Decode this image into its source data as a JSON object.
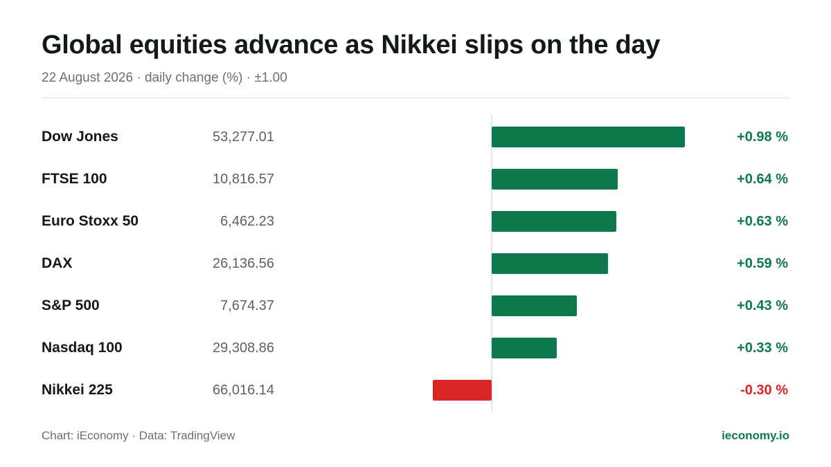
{
  "header": {
    "title": "Global equities advance as Nikkei slips on the day",
    "subtitle": "22 August 2026 · daily change (%) · ±1.00"
  },
  "footer": {
    "source": "Chart: iEconomy · Data: TradingView",
    "brand": "ieconomy.io"
  },
  "colors": {
    "positive": "#0c7a4d",
    "negative": "#dc2626",
    "brand": "#0c7a4d"
  },
  "chart_data": {
    "type": "bar",
    "orientation": "horizontal",
    "axis_range": [
      -1.0,
      1.0
    ],
    "rows": [
      {
        "name": "Dow Jones",
        "level": "53,277.01",
        "change": 0.98,
        "change_label": "+0.98 %"
      },
      {
        "name": "FTSE 100",
        "level": "10,816.57",
        "change": 0.64,
        "change_label": "+0.64 %"
      },
      {
        "name": "Euro Stoxx 50",
        "level": "6,462.23",
        "change": 0.63,
        "change_label": "+0.63 %"
      },
      {
        "name": "DAX",
        "level": "26,136.56",
        "change": 0.59,
        "change_label": "+0.59 %"
      },
      {
        "name": "S&P 500",
        "level": "7,674.37",
        "change": 0.43,
        "change_label": "+0.43 %"
      },
      {
        "name": "Nasdaq 100",
        "level": "29,308.86",
        "change": 0.33,
        "change_label": "+0.33 %"
      },
      {
        "name": "Nikkei 225",
        "level": "66,016.14",
        "change": -0.3,
        "change_label": "-0.30 %"
      }
    ]
  }
}
